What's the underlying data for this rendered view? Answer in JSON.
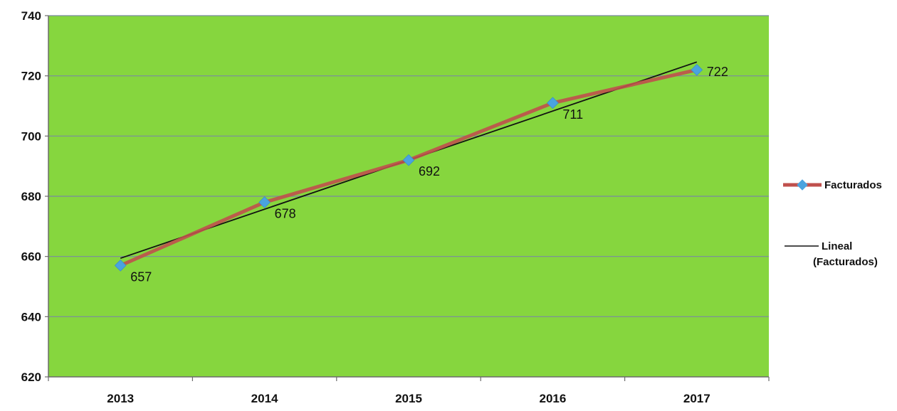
{
  "chart_data": {
    "type": "line",
    "title": "",
    "xlabel": "",
    "ylabel": "",
    "categories": [
      "2013",
      "2014",
      "2015",
      "2016",
      "2017"
    ],
    "series": [
      {
        "name": "Facturados",
        "values": [
          657,
          678,
          692,
          711,
          722
        ],
        "data_labels": [
          "657",
          "678",
          "692",
          "711",
          "722"
        ],
        "line_color": "#c0504d",
        "marker_color": "#4aa3df",
        "marker": "diamond"
      }
    ],
    "trendline": {
      "name": "Lineal (Facturados)",
      "name_lines": [
        "Lineal",
        "(Facturados)"
      ],
      "type": "linear",
      "color": "#111111"
    },
    "ylim": [
      620,
      740
    ],
    "yticks": [
      620,
      640,
      660,
      680,
      700,
      720,
      740
    ],
    "grid": true,
    "plot_background": "#86d63e",
    "gridline_color": "#7a8aa0",
    "legend_position": "right"
  }
}
